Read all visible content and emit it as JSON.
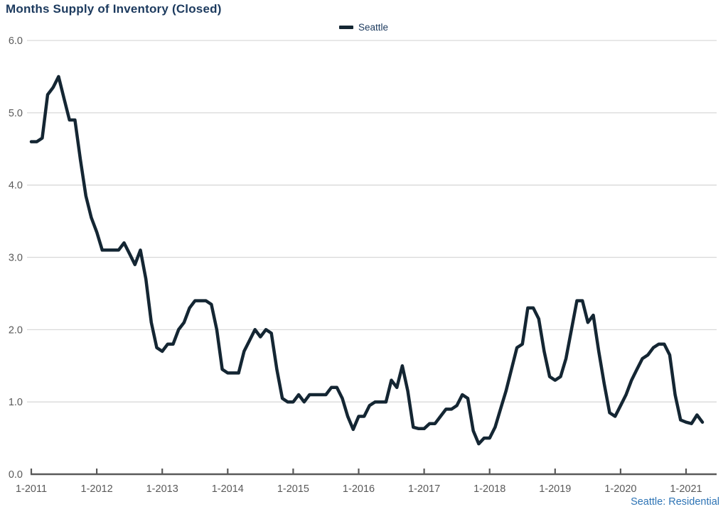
{
  "title": "Months Supply of Inventory (Closed)",
  "legend": {
    "label": "Seattle"
  },
  "footer": "Seattle: Residential",
  "colors": {
    "line": "#142633",
    "title_text": "#1c3a5e",
    "footer_text": "#2e74b5",
    "axis_text": "#595959",
    "gridline": "#d9d9d9",
    "axis_line": "#595959"
  },
  "chart_data": {
    "type": "line",
    "title": "Months Supply of Inventory (Closed)",
    "annotation": "Seattle: Residential",
    "x_unit": "month",
    "x_range": [
      "2011-01",
      "2021-04"
    ],
    "x_tick_labels": [
      "1-2011",
      "1-2012",
      "1-2013",
      "1-2014",
      "1-2015",
      "1-2016",
      "1-2017",
      "1-2018",
      "1-2019",
      "1-2020",
      "1-2021"
    ],
    "y_tick_labels": [
      "0.0",
      "1.0",
      "2.0",
      "3.0",
      "4.0",
      "5.0",
      "6.0"
    ],
    "y_ticks": [
      0,
      1,
      2,
      3,
      4,
      5,
      6
    ],
    "ylim": [
      0,
      6
    ],
    "grid": "horizontal",
    "legend_position": "top-center",
    "series": [
      {
        "name": "Seattle",
        "values": [
          4.6,
          4.6,
          4.65,
          5.25,
          5.35,
          5.5,
          5.2,
          4.9,
          4.9,
          4.35,
          3.85,
          3.55,
          3.35,
          3.1,
          3.1,
          3.1,
          3.1,
          3.2,
          3.05,
          2.9,
          3.1,
          2.7,
          2.1,
          1.75,
          1.7,
          1.8,
          1.8,
          2.0,
          2.1,
          2.3,
          2.4,
          2.4,
          2.4,
          2.35,
          2.0,
          1.45,
          1.4,
          1.4,
          1.4,
          1.7,
          1.85,
          2.0,
          1.9,
          2.0,
          1.95,
          1.45,
          1.05,
          1.0,
          1.0,
          1.1,
          1.0,
          1.1,
          1.1,
          1.1,
          1.1,
          1.2,
          1.2,
          1.05,
          0.8,
          0.62,
          0.8,
          0.8,
          0.95,
          1.0,
          1.0,
          1.0,
          1.3,
          1.2,
          1.5,
          1.15,
          0.65,
          0.63,
          0.63,
          0.7,
          0.7,
          0.8,
          0.9,
          0.9,
          0.95,
          1.1,
          1.05,
          0.6,
          0.42,
          0.5,
          0.5,
          0.65,
          0.9,
          1.15,
          1.45,
          1.75,
          1.8,
          2.3,
          2.3,
          2.15,
          1.7,
          1.35,
          1.3,
          1.35,
          1.6,
          2.0,
          2.4,
          2.4,
          2.1,
          2.2,
          1.7,
          1.25,
          0.85,
          0.8,
          0.95,
          1.1,
          1.3,
          1.45,
          1.6,
          1.65,
          1.75,
          1.8,
          1.8,
          1.65,
          1.1,
          0.75,
          0.72,
          0.7,
          0.82,
          0.72
        ]
      }
    ]
  }
}
